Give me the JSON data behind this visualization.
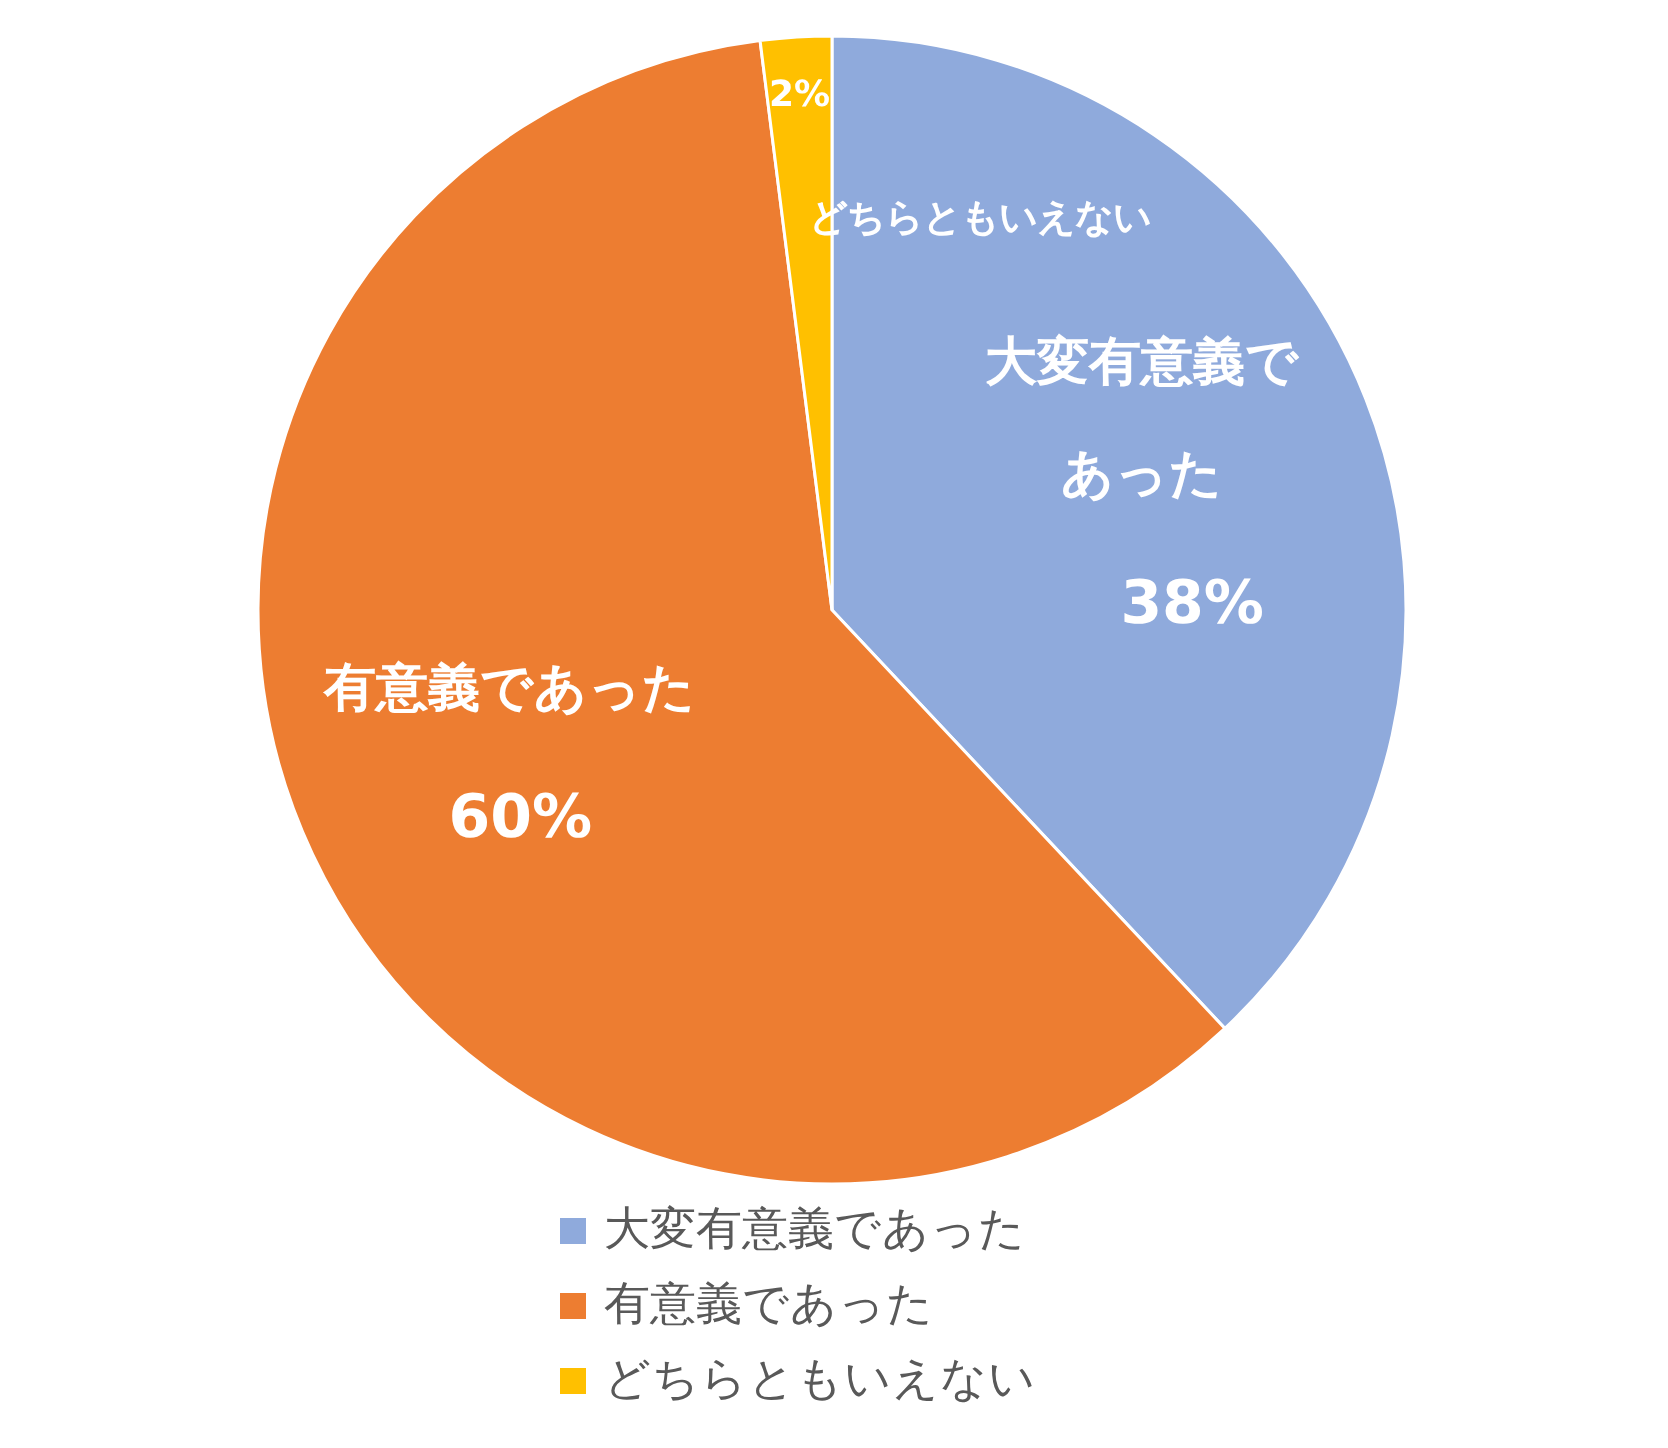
{
  "chart_data": {
    "type": "pie",
    "categories": [
      "大変有意義であった",
      "有意義であった",
      "どちらともいえない"
    ],
    "values": [
      38,
      60,
      2
    ],
    "colors": [
      "#8faadc",
      "#ed7d31",
      "#ffc000"
    ],
    "value_labels": [
      "38%",
      "60%",
      "2%"
    ],
    "legend": "bottom"
  }
}
